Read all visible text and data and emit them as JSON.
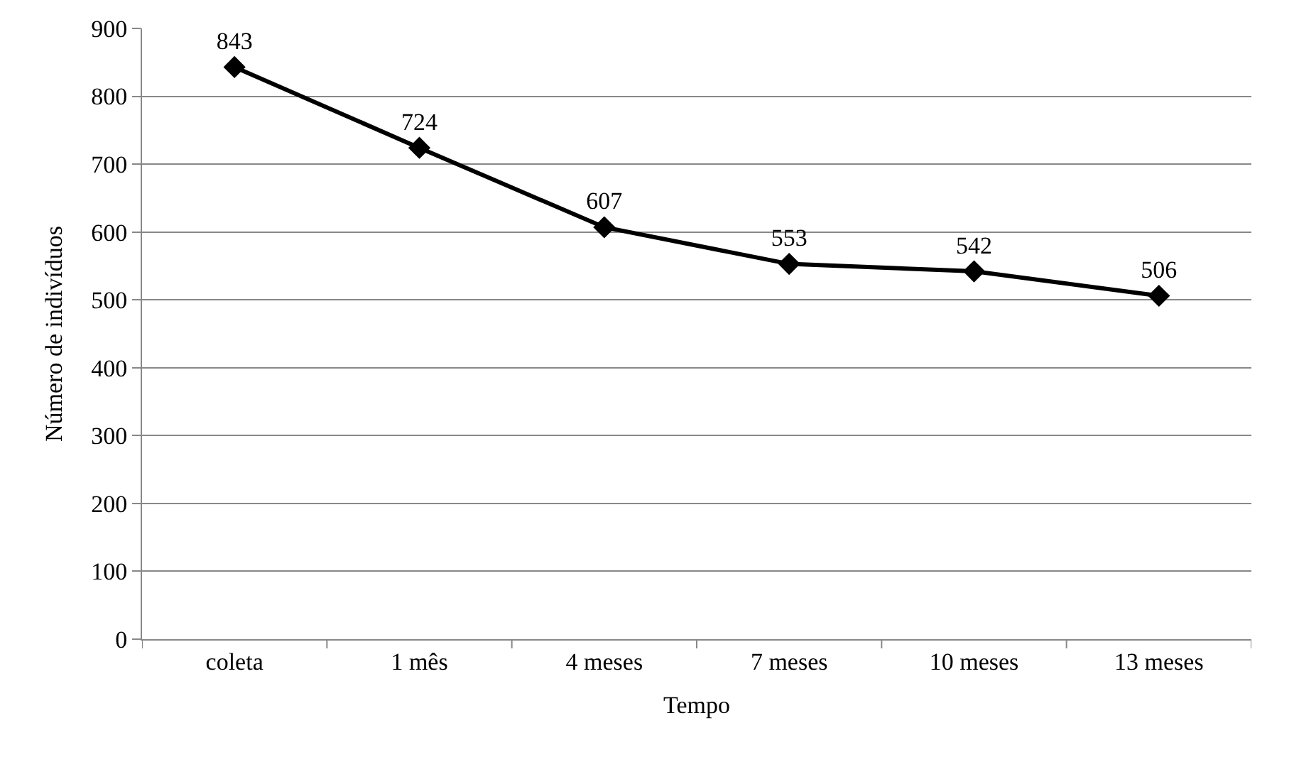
{
  "chart_data": {
    "type": "line",
    "xlabel": "Tempo",
    "ylabel": "Número de indivíduos",
    "categories": [
      "coleta",
      "1 mês",
      "4 meses",
      "7 meses",
      "10 meses",
      "13 meses"
    ],
    "series": [
      {
        "color": "#000000",
        "values": [
          843,
          724,
          607,
          553,
          542,
          506
        ]
      }
    ],
    "ylim": [
      0,
      900
    ],
    "yticks": [
      0,
      100,
      200,
      300,
      400,
      500,
      600,
      700,
      800,
      900
    ],
    "grid": "y",
    "marker": "diamond",
    "line_style": "solid",
    "data_labels": true,
    "legend": false
  }
}
